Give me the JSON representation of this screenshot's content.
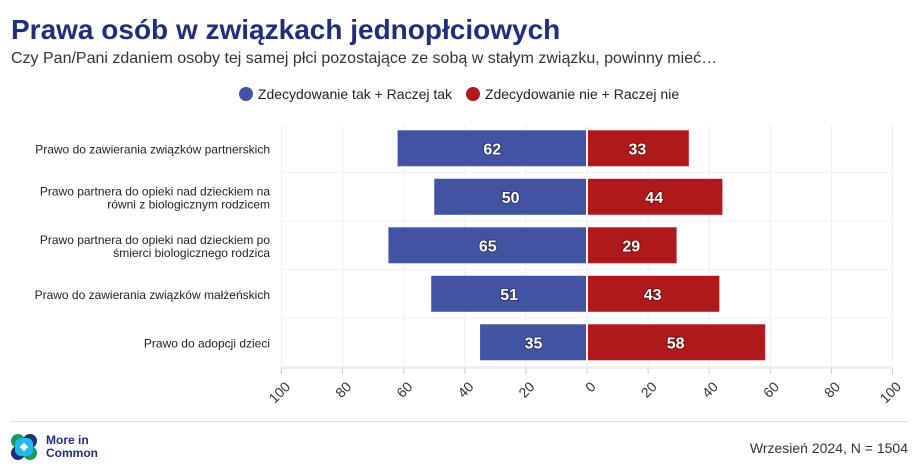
{
  "chart_data": {
    "type": "bar",
    "title": "Prawa osób w związkach jednopłciowych",
    "subtitle": "Czy Pan/Pani zdaniem osoby tej samej płci pozostające ze sobą w stałym związku, powinny mieć…",
    "categories": [
      [
        "Prawo do zawierania związków partnerskich"
      ],
      [
        "Prawo partnera do opieki nad dzieckiem na",
        "równi z biologicznym rodzicem"
      ],
      [
        "Prawo partnera do opieki nad dzieckiem po",
        "śmierci biologicznego rodzica"
      ],
      [
        "Prawo do zawierania związków małżeńskich"
      ],
      [
        "Prawo do adopcji dzieci"
      ]
    ],
    "series": [
      {
        "name": "Zdecydowanie tak + Raczej tak",
        "color": "#4353a4",
        "values": [
          62,
          50,
          65,
          51,
          35
        ]
      },
      {
        "name": "Zdecydowanie nie + Raczej nie",
        "color": "#b0191c",
        "values": [
          33,
          44,
          29,
          43,
          58
        ]
      }
    ],
    "xticks": [
      "100",
      "80",
      "60",
      "40",
      "20",
      "0",
      "20",
      "40",
      "60",
      "80",
      "100"
    ],
    "xlim": [
      -100,
      100
    ],
    "legend": "top"
  },
  "footer": {
    "logo_line1": "More in",
    "logo_line2": "Common",
    "note": "Wrzesień 2024, N = 1504"
  }
}
